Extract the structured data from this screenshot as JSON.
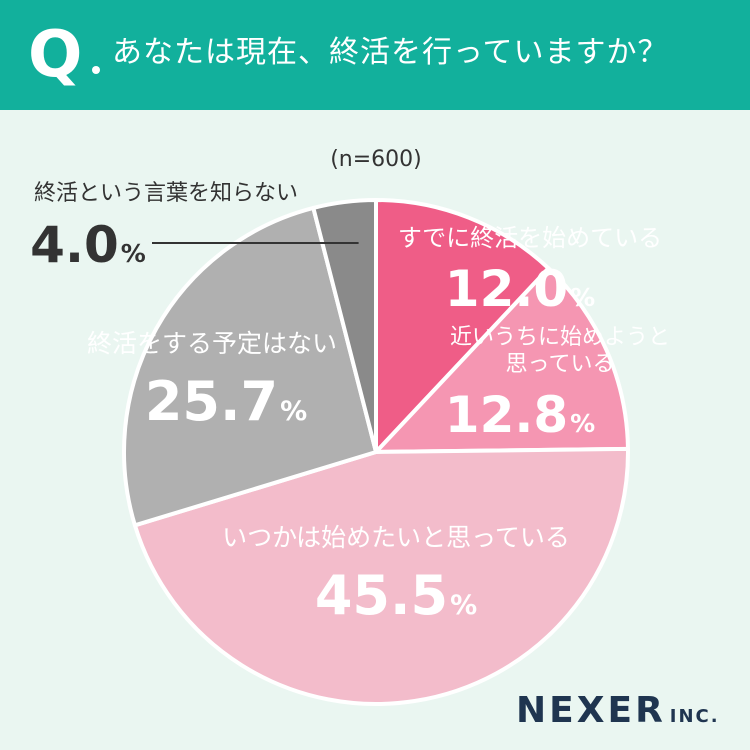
{
  "header": {
    "q_label": "Q",
    "question": "あなたは現在、終活を行っていますか？"
  },
  "colors": {
    "header_bg": "#12b09c",
    "background": "#eaf6f1",
    "slice_1": "#ef5d87",
    "slice_2": "#f596b2",
    "slice_3": "#f3bccb",
    "slice_4": "#b0b0b0",
    "slice_5": "#8a8a8a",
    "text_on_pink": "#ffffff",
    "text_dark": "#333333"
  },
  "logo": {
    "main": "NEXER",
    "inc": "INC."
  },
  "chart_data": {
    "type": "pie",
    "sample_size_label": "(n=600)",
    "unit": "%",
    "start": "top",
    "direction": "clockwise",
    "slices": [
      {
        "label_lines": [
          "すでに終活を始めている"
        ],
        "value": 12.0,
        "value_text": "12.0",
        "color": "#ef5d87",
        "label_color": "#ffffff"
      },
      {
        "label_lines": [
          "近いうちに始めようと",
          "思っている"
        ],
        "value": 12.8,
        "value_text": "12.8",
        "color": "#f596b2",
        "label_color": "#ffffff"
      },
      {
        "label_lines": [
          "いつかは始めたいと思っている"
        ],
        "value": 45.5,
        "value_text": "45.5",
        "color": "#f3bccb",
        "label_color": "#ffffff"
      },
      {
        "label_lines": [
          "終活をする予定はない"
        ],
        "value": 25.7,
        "value_text": "25.7",
        "color": "#b0b0b0",
        "label_color": "#ffffff"
      },
      {
        "label_lines": [
          "終活という言葉を知らない"
        ],
        "value": 4.0,
        "value_text": "4.0",
        "color": "#8a8a8a",
        "label_color": "#333333",
        "callout": true
      }
    ]
  }
}
